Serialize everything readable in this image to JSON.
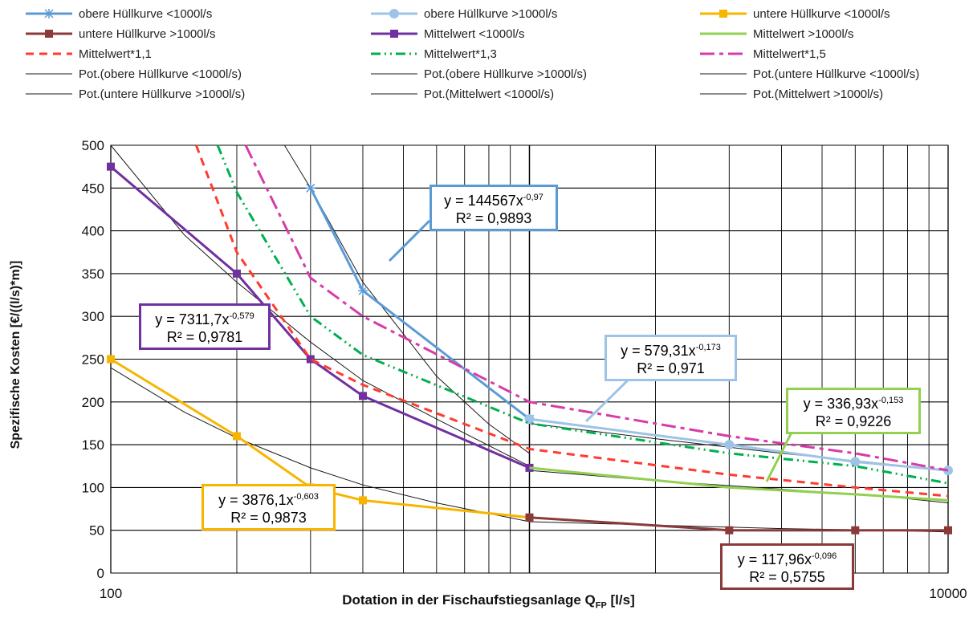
{
  "chart_data": {
    "type": "line",
    "x_scale": "log",
    "xlim": [
      100,
      10000
    ],
    "ylim": [
      0,
      500
    ],
    "grid": true,
    "legend_position": "top",
    "xlabel_main": "Dotation in der Fischaufstiegsanlage Q",
    "xlabel_sub": "FP",
    "xlabel_unit": " [l/s]",
    "ylabel": "Spezifische Kosten [€/((l/s)*m)]",
    "x_ticks": [
      "100",
      "10000"
    ],
    "y_ticks": [
      "0",
      "50",
      "100",
      "150",
      "200",
      "250",
      "300",
      "350",
      "400",
      "450",
      "500"
    ],
    "series": [
      {
        "name": "obere Hüllkurve <1000l/s",
        "color": "#5b9bd5",
        "dash": "",
        "marker": "star",
        "x": [
          300,
          400,
          1000
        ],
        "y": [
          450,
          330,
          180
        ]
      },
      {
        "name": "obere Hüllkurve >1000l/s",
        "color": "#9dc3e6",
        "dash": "",
        "marker": "circle",
        "x": [
          1000,
          3000,
          6000,
          10000
        ],
        "y": [
          180,
          150,
          130,
          120
        ]
      },
      {
        "name": "untere Hüllkurve <1000l/s",
        "color": "#f7b500",
        "dash": "",
        "marker": "square",
        "x": [
          100,
          200,
          300,
          400,
          1000
        ],
        "y": [
          250,
          160,
          100,
          85,
          65
        ]
      },
      {
        "name": "untere Hüllkurve >1000l/s",
        "color": "#8b3a3a",
        "dash": "",
        "marker": "square",
        "x": [
          1000,
          3000,
          6000,
          10000
        ],
        "y": [
          65,
          50,
          50,
          50
        ]
      },
      {
        "name": "Mittelwert <1000l/s",
        "color": "#7030a0",
        "dash": "",
        "marker": "square",
        "x": [
          100,
          200,
          300,
          400,
          1000
        ],
        "y": [
          475,
          350,
          250,
          207,
          123
        ]
      },
      {
        "name": "Mittelwert >1000l/s",
        "color": "#92d050",
        "dash": "",
        "marker": "none",
        "x": [
          1000,
          3000,
          6000,
          10000
        ],
        "y": [
          123,
          100,
          92,
          85
        ]
      },
      {
        "name": "Mittelwert*1,1",
        "color": "#ff3b30",
        "dash": "10,7",
        "marker": "none",
        "x": [
          160,
          200,
          300,
          400,
          1000,
          3000,
          6000,
          10000
        ],
        "y": [
          500,
          375,
          250,
          220,
          145,
          115,
          100,
          90
        ]
      },
      {
        "name": "Mittelwert*1,3",
        "color": "#00b050",
        "dash": "12,5,2,5,2,5",
        "marker": "none",
        "x": [
          180,
          200,
          300,
          400,
          1000,
          3000,
          6000,
          10000
        ],
        "y": [
          500,
          445,
          300,
          255,
          175,
          140,
          125,
          105
        ]
      },
      {
        "name": "Mittelwert*1,5",
        "color": "#d63ca8",
        "dash": "18,6,5,6",
        "marker": "none",
        "x": [
          210,
          300,
          400,
          1000,
          3000,
          6000,
          10000
        ],
        "y": [
          500,
          345,
          300,
          200,
          160,
          140,
          120
        ]
      },
      {
        "name": "Pot.(obere Hüllkurve <1000l/s)",
        "color": "#1a1a1a",
        "dash": "",
        "marker": "none",
        "width": 1,
        "x": [
          260,
          300,
          400,
          600,
          800,
          1000
        ],
        "y": [
          500,
          450,
          340,
          230,
          174,
          140
        ]
      },
      {
        "name": "Pot.(obere Hüllkurve >1000l/s)",
        "color": "#1a1a1a",
        "dash": "",
        "marker": "none",
        "width": 1,
        "x": [
          1000,
          2000,
          4000,
          7000,
          10000
        ],
        "y": [
          175,
          157,
          140,
          128,
          120
        ]
      },
      {
        "name": "Pot.(untere Hüllkurve <1000l/s)",
        "color": "#1a1a1a",
        "dash": "",
        "marker": "none",
        "width": 1,
        "x": [
          100,
          150,
          200,
          300,
          400,
          600,
          1000
        ],
        "y": [
          240,
          188,
          158,
          123,
          103,
          82,
          60
        ]
      },
      {
        "name": "Pot.(untere Hüllkurve >1000l/s)",
        "color": "#1a1a1a",
        "dash": "",
        "marker": "none",
        "width": 1,
        "x": [
          1000,
          2000,
          4000,
          7000,
          10000
        ],
        "y": [
          60,
          56,
          52,
          50,
          48
        ]
      },
      {
        "name": "Pot.(Mittelwert <1000l/s)",
        "color": "#1a1a1a",
        "dash": "",
        "marker": "none",
        "width": 1,
        "x": [
          100,
          150,
          200,
          300,
          400,
          600,
          1000
        ],
        "y": [
          500,
          395,
          340,
          270,
          225,
          180,
          125
        ]
      },
      {
        "name": "Pot.(Mittelwert >1000l/s)",
        "color": "#1a1a1a",
        "dash": "",
        "marker": "none",
        "width": 1,
        "x": [
          1000,
          2000,
          4000,
          7000,
          10000
        ],
        "y": [
          120,
          108,
          98,
          90,
          82
        ]
      }
    ],
    "annotations": [
      {
        "eq_main": "y = 144567x",
        "eq_exp": "-0,97",
        "r2": "R² = 0,9893",
        "color": "#5b9bd5"
      },
      {
        "eq_main": "y = 7311,7x",
        "eq_exp": "-0,579",
        "r2": "R² = 0,9781",
        "color": "#7030a0"
      },
      {
        "eq_main": "y = 579,31x",
        "eq_exp": "-0,173",
        "r2": "R² = 0,971",
        "color": "#9dc3e6"
      },
      {
        "eq_main": "y = 336,93x",
        "eq_exp": "-0,153",
        "r2": "R² = 0,9226",
        "color": "#92d050"
      },
      {
        "eq_main": "y = 3876,1x",
        "eq_exp": "-0,603",
        "r2": "R² = 0,9873",
        "color": "#f7b500"
      },
      {
        "eq_main": "y = 117,96x",
        "eq_exp": "-0,096",
        "r2": "R² = 0,5755",
        "color": "#8b3a3a"
      }
    ]
  }
}
